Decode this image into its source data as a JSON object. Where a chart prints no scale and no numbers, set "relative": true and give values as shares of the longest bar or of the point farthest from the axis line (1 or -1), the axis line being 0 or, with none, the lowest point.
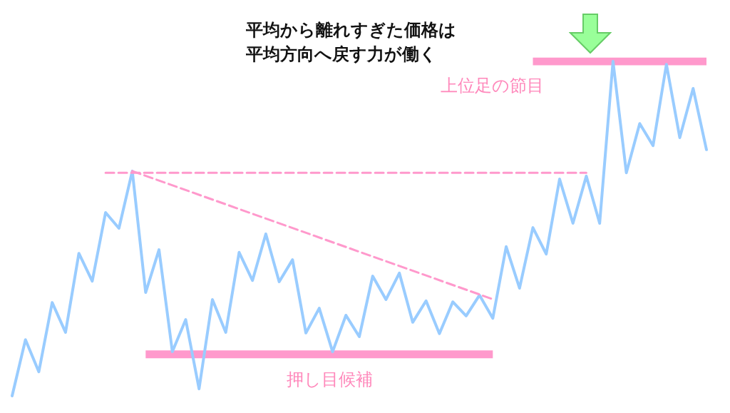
{
  "chart_data": {
    "type": "line",
    "relative": true,
    "marker": "none",
    "annotations": [
      "平均から離れすぎた価格は",
      "平均方向へ戻す力が働く",
      "上位足の節目",
      "押し目候補"
    ],
    "categories": [
      null,
      null,
      null,
      null,
      null,
      null,
      null,
      null,
      null,
      null,
      null,
      null,
      null,
      null,
      null,
      null,
      null,
      null,
      null,
      null,
      null,
      null,
      null,
      null,
      null,
      null,
      null,
      null,
      null,
      null,
      null,
      null,
      null,
      null,
      null,
      null,
      null,
      null,
      null,
      null,
      null,
      null,
      null,
      null,
      null,
      null,
      null,
      null,
      null,
      null,
      null,
      null,
      null
    ],
    "series": [
      {
        "color": "#99ccff",
        "line_style": "solid",
        "values": [
          0,
          0.168,
          0.072,
          0.279,
          0.19,
          0.426,
          0.343,
          0.548,
          0.501,
          0.672,
          0.309,
          0.437,
          0.132,
          0.228,
          0.021,
          0.288,
          0.19,
          0.429,
          0.345,
          0.484,
          0.341,
          0.407,
          0.188,
          0.262,
          0.132,
          0.241,
          0.177,
          0.358,
          0.288,
          0.367,
          0.22,
          0.284,
          0.186,
          0.281,
          0.239,
          0.301,
          0.232,
          0.446,
          0.322,
          0.503,
          0.424,
          0.648,
          0.516,
          0.657,
          0.516,
          1,
          0.667,
          0.814,
          0.748,
          0.991,
          0.772,
          0.919,
          0.736
        ]
      },
      {
        "color": "#ff99cc",
        "line_style": "dashed",
        "values": [
          null,
          null,
          null,
          null,
          null,
          null,
          null,
          0.667,
          0.667,
          0.667,
          0.667,
          0.667,
          0.667,
          0.667,
          0.667,
          0.667,
          0.667,
          0.667,
          0.667,
          0.667,
          0.667,
          0.667,
          0.667,
          0.667,
          0.667,
          0.667,
          0.667,
          0.667,
          0.667,
          0.667,
          0.667,
          0.667,
          0.667,
          0.667,
          0.667,
          0.667,
          0.667,
          0.667,
          0.667,
          0.667,
          0.667,
          0.667,
          0.667,
          0.667,
          null,
          null,
          null,
          null,
          null,
          null,
          null,
          null,
          null
        ]
      },
      {
        "color": "#ff99cc",
        "line_style": "dashed",
        "values": [
          null,
          null,
          null,
          null,
          null,
          null,
          null,
          null,
          null,
          0.672,
          null,
          null,
          null,
          null,
          null,
          null,
          null,
          null,
          null,
          null,
          null,
          null,
          null,
          null,
          null,
          null,
          null,
          null,
          null,
          null,
          null,
          null,
          null,
          null,
          null,
          null,
          0.289,
          null,
          null,
          null,
          null,
          null,
          null,
          null,
          null,
          null,
          null,
          null,
          null,
          null,
          null,
          null,
          null
        ]
      },
      {
        "color": "#ff99cc",
        "line_style": "solid",
        "values": [
          null,
          null,
          null,
          null,
          null,
          null,
          null,
          null,
          null,
          null,
          null,
          null,
          null,
          null,
          null,
          null,
          null,
          null,
          null,
          null,
          null,
          null,
          null,
          null,
          null,
          null,
          null,
          null,
          null,
          null,
          null,
          null,
          null,
          null,
          null,
          null,
          null,
          null,
          null,
          1,
          1,
          1,
          1,
          1,
          1,
          1,
          1,
          1,
          1,
          1,
          1,
          1,
          1
        ]
      },
      {
        "color": "#ff99cc",
        "line_style": "solid",
        "values": [
          null,
          null,
          null,
          null,
          null,
          null,
          null,
          null,
          null,
          null,
          0.124,
          0.124,
          0.124,
          0.124,
          0.124,
          0.124,
          0.124,
          0.124,
          0.124,
          0.124,
          0.124,
          0.124,
          0.124,
          0.124,
          0.124,
          0.124,
          0.124,
          0.124,
          0.124,
          0.124,
          0.124,
          0.124,
          0.124,
          0.124,
          0.124,
          0.124,
          0.124,
          null,
          null,
          null,
          null,
          null,
          null,
          null,
          null,
          null,
          null,
          null,
          null,
          null,
          null,
          null,
          null
        ]
      }
    ]
  }
}
